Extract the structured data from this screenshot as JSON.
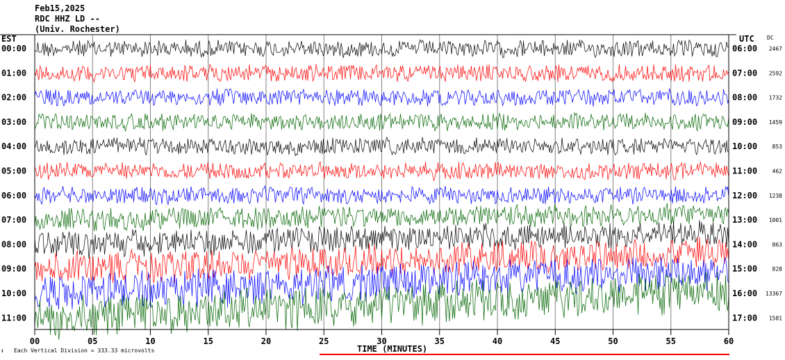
{
  "header": {
    "date": "Feb15,2025",
    "channel": "RDC HHZ LD --",
    "location": "(Univ. Rochester)"
  },
  "left_label": "EST",
  "right_label": "UTC",
  "dc_label": "DC",
  "xlabel": "TIME (MINUTES)",
  "scale_note": "Each Vertical Division =  333.33 microvolts",
  "colors": [
    "#000000",
    "#ff0000",
    "#0000ff",
    "#006400"
  ],
  "chart_data": {
    "type": "line",
    "title": "",
    "xlabel": "TIME (MINUTES)",
    "ylabel": "",
    "xlim": [
      0,
      60
    ],
    "x_ticks": [
      "00",
      "05",
      "10",
      "15",
      "20",
      "25",
      "30",
      "35",
      "40",
      "45",
      "50",
      "55",
      "60"
    ],
    "grid": true,
    "traces": [
      {
        "est": "00:00",
        "utc": "06:00",
        "dc": "2467"
      },
      {
        "est": "01:00",
        "utc": "07:00",
        "dc": "2592"
      },
      {
        "est": "02:00",
        "utc": "08:00",
        "dc": "1732"
      },
      {
        "est": "03:00",
        "utc": "09:00",
        "dc": "1459"
      },
      {
        "est": "04:00",
        "utc": "10:00",
        "dc": "853"
      },
      {
        "est": "05:00",
        "utc": "11:00",
        "dc": "462"
      },
      {
        "est": "06:00",
        "utc": "12:00",
        "dc": "1238"
      },
      {
        "est": "07:00",
        "utc": "13:00",
        "dc": "1001"
      },
      {
        "est": "08:00",
        "utc": "14:00",
        "dc": "863"
      },
      {
        "est": "09:00",
        "utc": "15:00",
        "dc": "828"
      },
      {
        "est": "10:00",
        "utc": "16:00",
        "dc": "13367"
      },
      {
        "est": "11:00",
        "utc": "17:00",
        "dc": "1581"
      }
    ]
  }
}
